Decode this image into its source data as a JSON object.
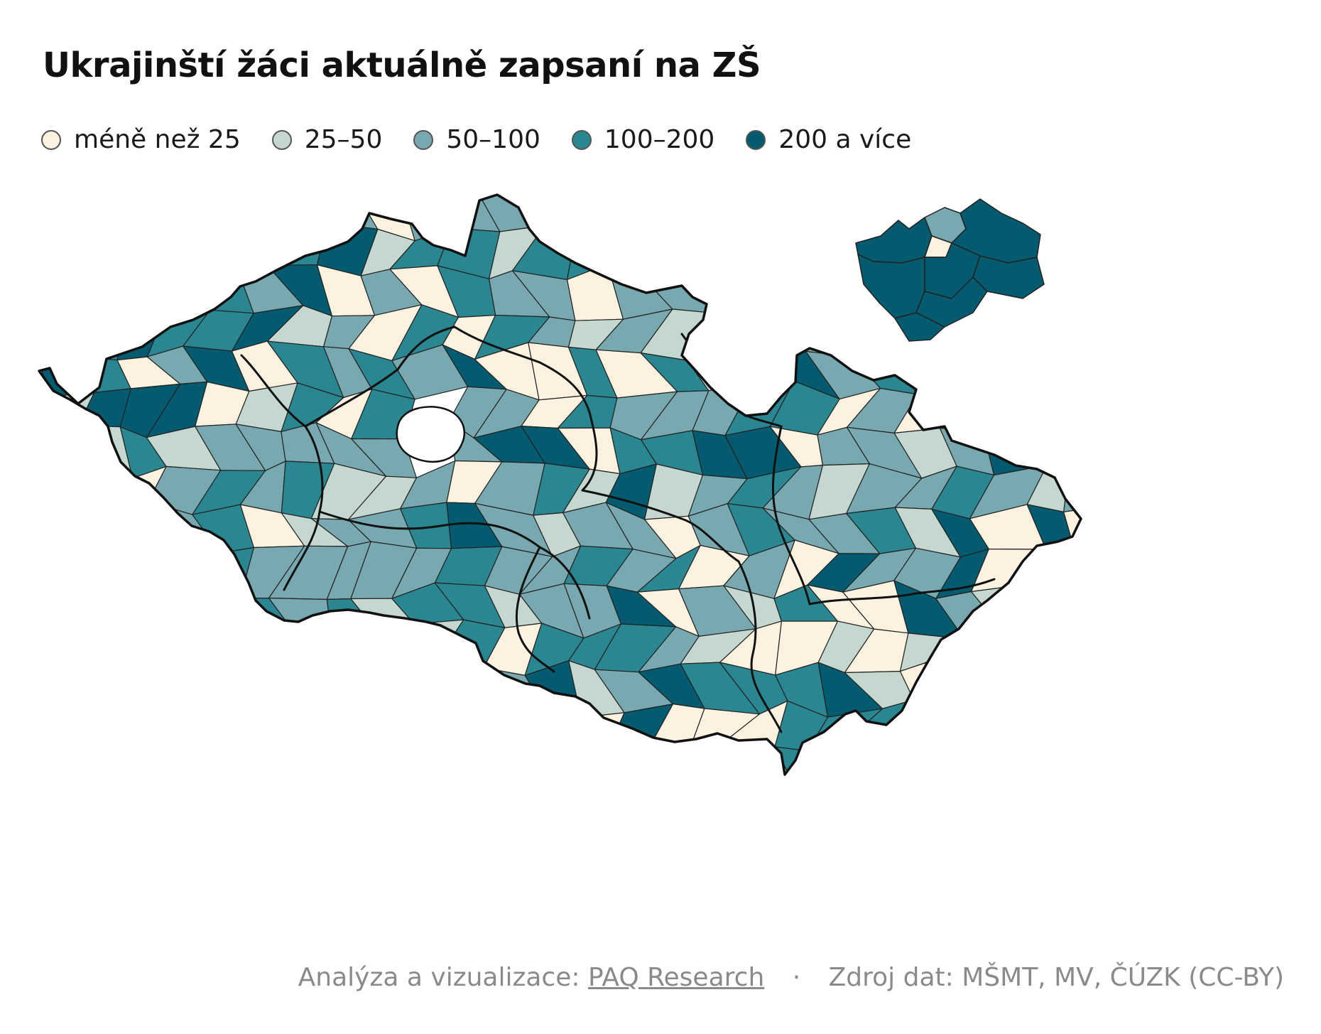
{
  "title": "Ukrajinští žáci aktuálně zapsaní na ZŠ",
  "legend": [
    {
      "label": "méně než 25",
      "color": "#fdf1df"
    },
    {
      "label": "25–50",
      "color": "#c5d8d0"
    },
    {
      "label": "50–100",
      "color": "#79a9b0"
    },
    {
      "label": "100–200",
      "color": "#2a8691"
    },
    {
      "label": "200 a více",
      "color": "#045a6e"
    }
  ],
  "footer": {
    "analysis_prefix": "Analýza a vizualizace:",
    "analysis_link": "PAQ Research",
    "separator": "·",
    "source": "Zdroj dat: MŠMT, MV, ČÚZK (CC-BY)"
  },
  "colors": {
    "border": "#111111",
    "inner_border": "#222222"
  }
}
